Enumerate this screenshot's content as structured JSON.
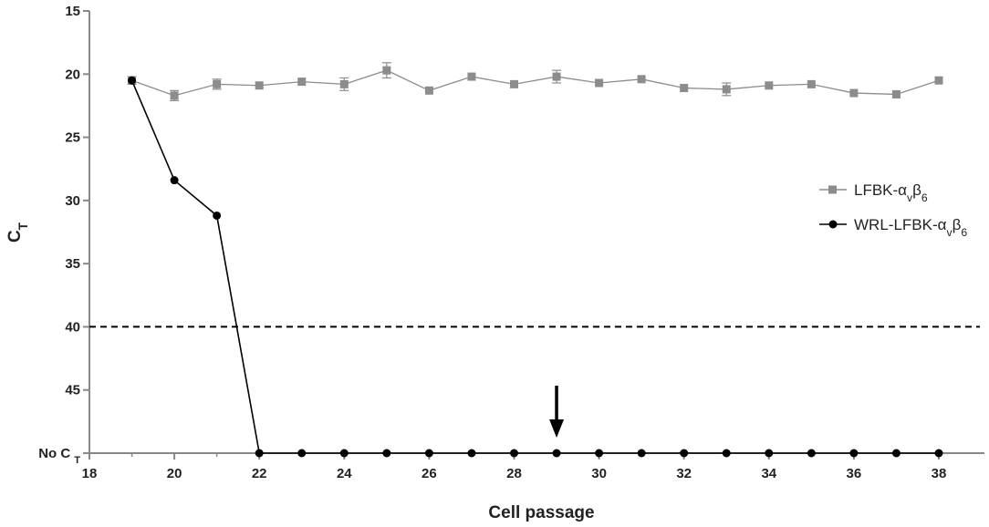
{
  "chart_data": {
    "type": "line",
    "xlabel": "Cell passage",
    "ylabel": "C",
    "ylabel_sub": "T",
    "x_ticks": [
      "18",
      "20",
      "22",
      "24",
      "26",
      "28",
      "30",
      "32",
      "34",
      "36",
      "38"
    ],
    "y_ticks": [
      "15",
      "20",
      "25",
      "30",
      "35",
      "40",
      "45"
    ],
    "y_bottom_label": "No C",
    "y_bottom_label_sub": "T",
    "xlim": [
      18,
      38
    ],
    "ylim": [
      15,
      50
    ],
    "y_reversed": true,
    "threshold": 40,
    "arrow_at_x": 29,
    "series": [
      {
        "name": "LFBK-αvβ6",
        "legend_text": "LFBK-α",
        "legend_sub1": "v",
        "legend_mid": "β",
        "legend_sub2": "6",
        "marker": "square",
        "color": "#8c8c8c",
        "x": [
          19,
          20,
          21,
          22,
          23,
          24,
          25,
          26,
          27,
          28,
          29,
          30,
          31,
          32,
          33,
          34,
          35,
          36,
          37,
          38
        ],
        "y": [
          20.5,
          21.7,
          20.8,
          20.9,
          20.6,
          20.8,
          19.7,
          21.3,
          20.2,
          20.8,
          20.2,
          20.7,
          20.4,
          21.1,
          21.2,
          20.9,
          20.8,
          21.5,
          21.6,
          20.5
        ],
        "err": [
          0.3,
          0.4,
          0.4,
          0,
          0,
          0.5,
          0.6,
          0,
          0,
          0,
          0.5,
          0,
          0,
          0,
          0.5,
          0,
          0,
          0,
          0,
          0
        ]
      },
      {
        "name": "WRL-LFBK-αvβ6",
        "legend_text": "WRL-LFBK-α",
        "legend_sub1": "v",
        "legend_mid": "β",
        "legend_sub2": "6",
        "marker": "circle",
        "color": "#000000",
        "x": [
          19,
          20,
          21,
          22,
          23,
          24,
          25,
          26,
          27,
          28,
          29,
          30,
          31,
          32,
          33,
          34,
          35,
          36,
          37,
          38
        ],
        "y": [
          20.5,
          28.4,
          31.2,
          50,
          50,
          50,
          50,
          50,
          50,
          50,
          50,
          50,
          50,
          50,
          50,
          50,
          50,
          50,
          50,
          50
        ]
      }
    ],
    "colors": {
      "axis": "#888888",
      "threshold": "#000000"
    }
  }
}
